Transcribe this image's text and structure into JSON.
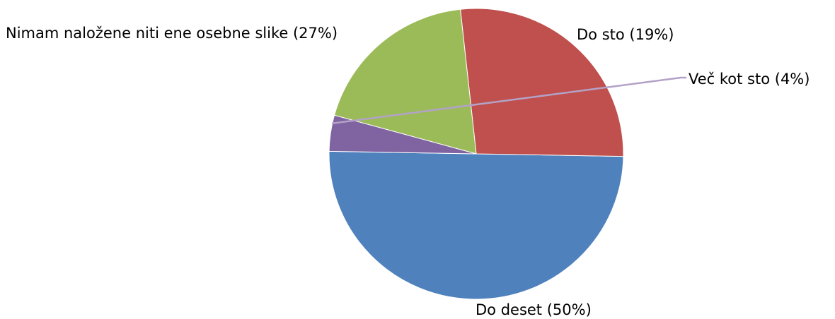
{
  "chart_data": {
    "type": "pie",
    "title": "",
    "slices": [
      {
        "label": "Do deset",
        "value": 50,
        "display": "Do deset (50%)",
        "color": "#4f81bd"
      },
      {
        "label": "Nimam naložene niti ene osebne slike",
        "value": 27,
        "display": "Nimam naložene niti ene osebne slike (27%)",
        "color": "#c0504d"
      },
      {
        "label": "Do sto",
        "value": 19,
        "display": "Do sto (19%)",
        "color": "#9bbb59"
      },
      {
        "label": "Več kot sto",
        "value": 4,
        "display": "Več kot sto (4%)",
        "color": "#8064a2"
      }
    ],
    "legend": "none",
    "labels": "outside"
  }
}
